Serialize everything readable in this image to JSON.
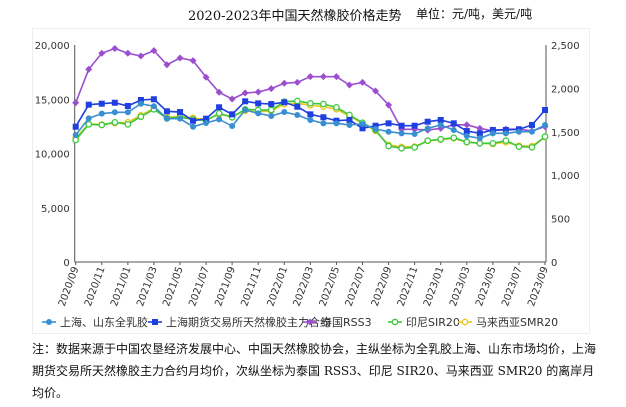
{
  "chart_data": {
    "type": "line",
    "title": "2020-2023年中国天然橡胶价格走势",
    "unit": "单位：元/吨，美元/吨",
    "x": [
      "2020/09",
      "2020/10",
      "2020/11",
      "2020/12",
      "2021/01",
      "2021/02",
      "2021/03",
      "2021/04",
      "2021/05",
      "2021/06",
      "2021/07",
      "2021/08",
      "2021/09",
      "2021/10",
      "2021/11",
      "2021/12",
      "2022/01",
      "2022/02",
      "2022/03",
      "2022/04",
      "2022/05",
      "2022/06",
      "2022/07",
      "2022/08",
      "2022/09",
      "2022/10",
      "2022/11",
      "2022/12",
      "2023/01",
      "2023/02",
      "2023/03",
      "2023/04",
      "2023/05",
      "2023/06",
      "2023/07",
      "2023/08",
      "2023/09"
    ],
    "xticks": [
      "2020/09",
      "2020/11",
      "2021/01",
      "2021/03",
      "2021/05",
      "2021/07",
      "2021/09",
      "2021/11",
      "2022/01",
      "2022/03",
      "2022/05",
      "2022/07",
      "2022/09",
      "2022/11",
      "2023/01",
      "2023/03",
      "2023/05",
      "2023/07",
      "2023/09"
    ],
    "y_left": {
      "ylim": [
        0,
        20000
      ],
      "ticks": [
        "0",
        "5,000",
        "10,000",
        "15,000",
        "20,000"
      ]
    },
    "y_right": {
      "ylim": [
        0,
        2500
      ],
      "ticks": [
        "0",
        "500",
        "1,000",
        "1,500",
        "2,000",
        "2,500"
      ]
    },
    "grid": false,
    "legend": "bottom",
    "series": [
      {
        "name": "上海、山东全乳胶",
        "axis": "left",
        "color": "#3a8fd0",
        "marker": "circle",
        "values": [
          11700,
          13240,
          13670,
          13800,
          13800,
          14590,
          14350,
          13210,
          13210,
          12470,
          12810,
          13150,
          12530,
          14010,
          13700,
          13460,
          13820,
          13550,
          13090,
          12780,
          12780,
          12630,
          12720,
          12260,
          12010,
          11860,
          11800,
          12320,
          12630,
          12170,
          11610,
          11400,
          11860,
          11860,
          12010,
          12010,
          12630
        ]
      },
      {
        "name": "上海期货交易所天然橡胶主力合约",
        "axis": "left",
        "color": "#1f3fe0",
        "marker": "square",
        "values": [
          12470,
          14500,
          14590,
          14680,
          14380,
          14930,
          15000,
          13890,
          13820,
          13020,
          13210,
          14260,
          13610,
          14810,
          14620,
          14560,
          14720,
          14310,
          13610,
          13340,
          13020,
          13090,
          12320,
          12560,
          12780,
          12560,
          12560,
          12930,
          13090,
          12780,
          12070,
          11860,
          12170,
          12170,
          12230,
          12630,
          14010
        ]
      },
      {
        "name": "泰国RSS3",
        "axis": "right",
        "color": "#9b4fd0",
        "marker": "diamond",
        "values": [
          1835,
          2220,
          2405,
          2460,
          2405,
          2373,
          2435,
          2273,
          2350,
          2320,
          2128,
          1955,
          1878,
          1947,
          1958,
          1997,
          2059,
          2070,
          2135,
          2135,
          2135,
          2039,
          2070,
          1970,
          1809,
          1529,
          1529,
          1520,
          1540,
          1580,
          1580,
          1540,
          1510,
          1530,
          1530,
          1510,
          1560
        ]
      },
      {
        "name": "印尼SIR20",
        "axis": "right",
        "color": "#3cc83c",
        "marker": "open-circle",
        "values": [
          1406,
          1586,
          1578,
          1609,
          1586,
          1674,
          1759,
          1655,
          1667,
          1644,
          1628,
          1713,
          1667,
          1759,
          1751,
          1751,
          1847,
          1855,
          1828,
          1820,
          1782,
          1694,
          1605,
          1521,
          1336,
          1310,
          1321,
          1398,
          1414,
          1432,
          1382,
          1367,
          1367,
          1398,
          1329,
          1321,
          1444
        ]
      },
      {
        "name": "马来西亚SMR20",
        "axis": "right",
        "color": "#e8c820",
        "marker": "open-circle",
        "values": [
          1430,
          1590,
          1585,
          1600,
          1610,
          1690,
          1770,
          1665,
          1680,
          1660,
          1640,
          1700,
          1680,
          1740,
          1730,
          1740,
          1820,
          1830,
          1805,
          1790,
          1760,
          1680,
          1600,
          1510,
          1350,
          1325,
          1330,
          1395,
          1410,
          1425,
          1380,
          1370,
          1360,
          1380,
          1340,
          1335,
          1440
        ]
      }
    ]
  },
  "note": "注：数据来源于中国农垦经济发展中心、中国天然橡胶协会，主纵坐标为全乳胶上海、山东市场均价，上海期货交易所天然橡胶主力合约月均价，次纵坐标为泰国 RSS3、印尼 SIR20、马来西亚 SMR20 的离岸月均价。"
}
